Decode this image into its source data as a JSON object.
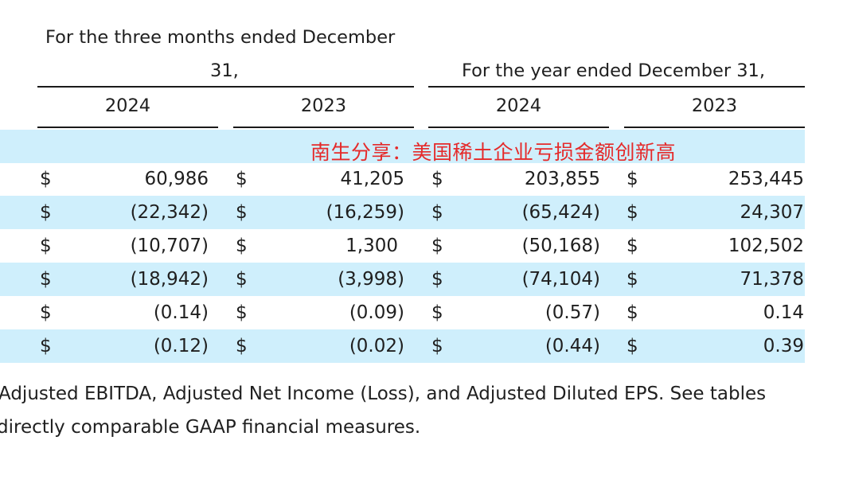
{
  "header": {
    "three_months_line1": "For the three months ended December",
    "three_months_line2": "31,",
    "year_title": "For the year ended December 31,",
    "years": [
      "2024",
      "2023",
      "2024",
      "2023"
    ]
  },
  "watermark": "南生分享：美国稀土企业亏损金额创新高",
  "currency_symbol": "$",
  "rows": [
    [
      "60,986",
      "41,205",
      "203,855",
      "253,445"
    ],
    [
      "(22,342)",
      "(16,259)",
      "(65,424)",
      "24,307"
    ],
    [
      "(10,707)",
      "1,300",
      "(50,168)",
      "102,502"
    ],
    [
      "(18,942)",
      "(3,998)",
      "(74,104)",
      "71,378"
    ],
    [
      "(0.14)",
      "(0.09)",
      "(0.57)",
      "0.14"
    ],
    [
      "(0.12)",
      "(0.02)",
      "(0.44)",
      "0.39"
    ]
  ],
  "footnote": {
    "line1": "Adjusted EBITDA, Adjusted Net Income (Loss), and Adjusted Diluted EPS. See tables",
    "line2": "directly comparable GAAP financial measures."
  },
  "colors": {
    "band": "#cfeffc",
    "watermark": "#e52a2a",
    "text": "#1f1f1f"
  }
}
